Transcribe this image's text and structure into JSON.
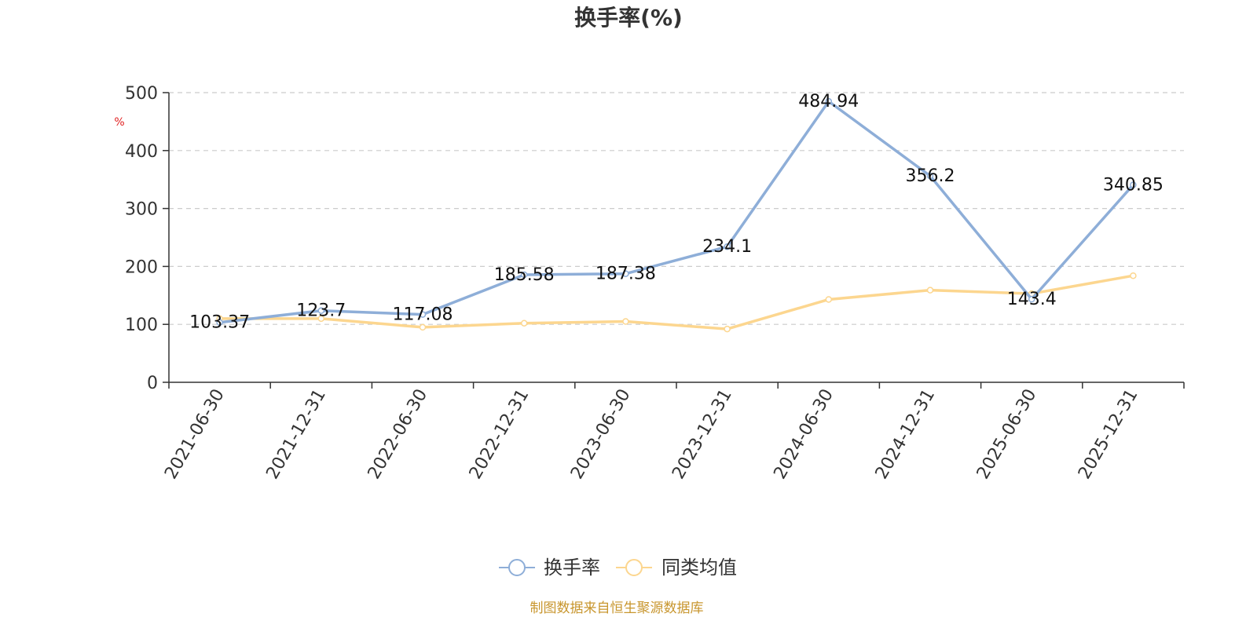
{
  "chart_data": {
    "type": "line",
    "title": "换手率(%)",
    "ylabel": "%",
    "xlabel": "",
    "ylim": [
      0,
      500
    ],
    "yticks": [
      0,
      100,
      200,
      300,
      400,
      500
    ],
    "grid": true,
    "legend_position": "bottom",
    "categories": [
      "2021-06-30",
      "2021-12-31",
      "2022-06-30",
      "2022-12-31",
      "2023-06-30",
      "2023-12-31",
      "2024-06-30",
      "2024-12-31",
      "2025-06-30",
      "2025-12-31"
    ],
    "series": [
      {
        "name": "换手率",
        "color": "#8eaed8",
        "values": [
          103.37,
          123.7,
          117.08,
          185.58,
          187.38,
          234.1,
          484.94,
          356.2,
          143.4,
          340.85
        ],
        "labels": [
          "103.37",
          "123.7",
          "117.08",
          "185.58",
          "187.38",
          "234.1",
          "484.94",
          "356.2",
          "143.4",
          "340.85"
        ]
      },
      {
        "name": "同类均值",
        "color": "#fcd68f",
        "values": [
          110,
          110,
          95,
          102,
          105,
          92,
          143,
          159,
          153,
          184
        ]
      }
    ]
  },
  "footer": {
    "text": "制图数据来自恒生聚源数据库",
    "color": "#c8962e"
  }
}
